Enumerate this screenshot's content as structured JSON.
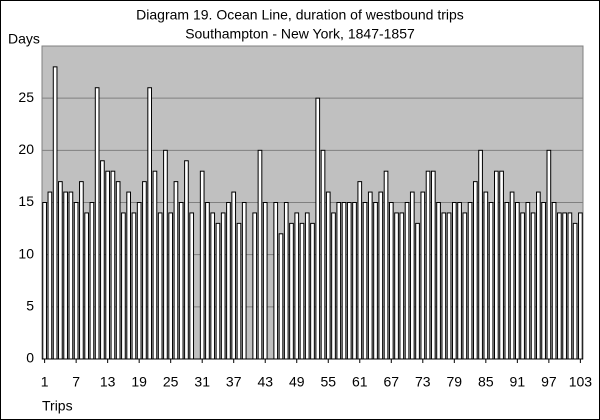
{
  "chart_data": {
    "type": "bar",
    "title": "Diagram 19. Ocean Line, duration of westbound trips",
    "subtitle": "Southampton - New York, 1847-1857",
    "y_label": "Days",
    "x_label": "Trips",
    "categories": [
      "1",
      null,
      null,
      null,
      null,
      null,
      "7",
      null,
      null,
      null,
      null,
      null,
      "13",
      null,
      null,
      null,
      null,
      null,
      "19",
      null,
      null,
      null,
      null,
      null,
      "25",
      null,
      null,
      null,
      null,
      null,
      "31",
      null,
      null,
      null,
      null,
      null,
      "37",
      null,
      null,
      null,
      null,
      null,
      "43",
      null,
      null,
      null,
      null,
      null,
      "49",
      null,
      null,
      null,
      null,
      null,
      "55",
      null,
      null,
      null,
      null,
      null,
      "61",
      null,
      null,
      null,
      null,
      null,
      "67",
      null,
      null,
      null,
      null,
      null,
      "73",
      null,
      null,
      null,
      null,
      null,
      "79",
      null,
      null,
      null,
      null,
      null,
      "85",
      null,
      null,
      null,
      null,
      null,
      "91",
      null,
      null,
      null,
      null,
      null,
      "97",
      null,
      null,
      null,
      null,
      null,
      "103"
    ],
    "values": [
      15,
      16,
      28,
      17,
      16,
      16,
      15,
      17,
      14,
      15,
      26,
      19,
      18,
      18,
      17,
      14,
      16,
      14,
      15,
      17,
      26,
      18,
      14,
      20,
      14,
      17,
      15,
      19,
      14,
      null,
      18,
      15,
      14,
      13,
      14,
      15,
      16,
      13,
      15,
      null,
      14,
      20,
      15,
      null,
      15,
      12,
      15,
      13,
      14,
      13,
      14,
      13,
      25,
      20,
      16,
      14,
      15,
      15,
      15,
      15,
      17,
      15,
      16,
      15,
      16,
      18,
      15,
      14,
      14,
      15,
      16,
      13,
      16,
      18,
      18,
      15,
      14,
      14,
      15,
      15,
      14,
      15,
      17,
      20,
      16,
      15,
      18,
      18,
      15,
      16,
      15,
      14,
      15,
      14,
      16,
      15,
      20,
      15,
      14,
      14,
      14,
      13,
      14
    ],
    "color": "#ffffff",
    "plot_background": "#c0c0c0",
    "ylim": [
      0,
      30
    ],
    "yticks": [
      0,
      5,
      10,
      15,
      20,
      25
    ],
    "grid": true
  }
}
